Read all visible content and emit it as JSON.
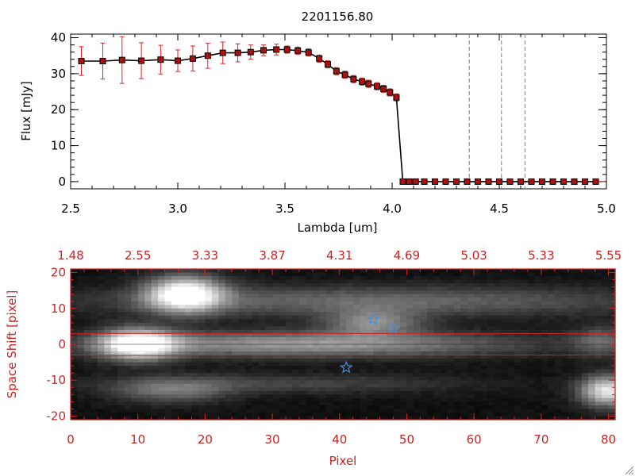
{
  "chart_data": [
    {
      "type": "line",
      "title": "2201156.80",
      "xlabel": "Lambda [um]",
      "ylabel": "Flux [mJy]",
      "xlim": [
        2.5,
        5.0
      ],
      "ylim": [
        -2,
        41
      ],
      "xticks": [
        "2.5",
        "3.0",
        "3.5",
        "4.0",
        "4.5",
        "5.0"
      ],
      "yticks": [
        "0",
        "10",
        "20",
        "30",
        "40"
      ],
      "xtick_values": [
        2.5,
        3.0,
        3.5,
        4.0,
        4.5,
        5.0
      ],
      "ytick_values": [
        0,
        10,
        20,
        30,
        40
      ],
      "colors": {
        "line": "#000000",
        "marker": "#aa1111",
        "errorbar": "#dd2222",
        "vline": "#4a90d9",
        "zero_line": "#dd2222"
      },
      "series": [
        {
          "name": "flux",
          "x": [
            2.55,
            2.65,
            2.74,
            2.83,
            2.92,
            3.0,
            3.07,
            3.14,
            3.21,
            3.28,
            3.34,
            3.4,
            3.46,
            3.51,
            3.56,
            3.61,
            3.66,
            3.7,
            3.74,
            3.78,
            3.82,
            3.86,
            3.89,
            3.93,
            3.96,
            3.99,
            4.02,
            4.05,
            4.08,
            4.11,
            4.15,
            4.2,
            4.25,
            4.3,
            4.35,
            4.4,
            4.45,
            4.5,
            4.55,
            4.6,
            4.65,
            4.7,
            4.75,
            4.8,
            4.85,
            4.9,
            4.95
          ],
          "y": [
            33.5,
            33.5,
            33.8,
            33.6,
            33.9,
            33.6,
            34.2,
            35.0,
            35.8,
            35.8,
            36.0,
            36.5,
            36.7,
            36.7,
            36.4,
            35.9,
            34.2,
            32.6,
            30.7,
            29.7,
            28.5,
            27.8,
            27.2,
            26.5,
            25.8,
            24.8,
            23.4,
            0,
            0,
            0,
            0,
            0,
            0,
            0,
            0,
            0,
            0,
            0,
            0,
            0,
            0,
            0,
            0,
            0,
            0,
            0,
            0
          ],
          "err": [
            4,
            5,
            6.5,
            5,
            4,
            3,
            3.5,
            3.5,
            3,
            2.5,
            2,
            1.5,
            1.5,
            1,
            1,
            1,
            1,
            1,
            1,
            1,
            1,
            1,
            1,
            1,
            1,
            1,
            1,
            0,
            0,
            0,
            0,
            0,
            0,
            0,
            0,
            0,
            0,
            0,
            0,
            0,
            0,
            0,
            0,
            0,
            0,
            0,
            0
          ]
        }
      ],
      "vlines": [
        4.36,
        4.51,
        4.62
      ]
    },
    {
      "type": "heatmap",
      "xlabel": "Pixel",
      "ylabel": "Space Shift [pixel]",
      "xlim": [
        0,
        81
      ],
      "ylim": [
        -21,
        21
      ],
      "xticks": [
        "0",
        "10",
        "20",
        "30",
        "40",
        "50",
        "60",
        "70",
        "80"
      ],
      "xtick_values": [
        0,
        10,
        20,
        30,
        40,
        50,
        60,
        70,
        80
      ],
      "yticks": [
        "20",
        "10",
        "0",
        "-10",
        "-20"
      ],
      "ytick_values": [
        20,
        10,
        0,
        -10,
        -20
      ],
      "top_ticks": [
        "1.48",
        "2.55",
        "3.33",
        "3.87",
        "4.31",
        "4.69",
        "5.03",
        "5.33",
        "5.55"
      ],
      "top_tick_positions": [
        0,
        10,
        20,
        30,
        40,
        50,
        60,
        70,
        80
      ],
      "hlines": [
        3,
        -3
      ],
      "stars": [
        [
          45,
          7
        ],
        [
          48,
          4.5
        ],
        [
          41,
          -6.5
        ]
      ],
      "colors": {
        "axis": "#cc2222",
        "hline": "#cc2222",
        "star": "#4a90d9"
      },
      "blobs": [
        {
          "cx": 17,
          "cy": 14,
          "sx": 4,
          "sy": 3.5,
          "amp": 1.0
        },
        {
          "cx": 45,
          "cy": 12,
          "sx": 30,
          "sy": 3,
          "amp": 0.35
        },
        {
          "cx": 10,
          "cy": 0,
          "sx": 4,
          "sy": 3,
          "amp": 1.0
        },
        {
          "cx": 35,
          "cy": 0,
          "sx": 22,
          "sy": 2.5,
          "amp": 0.55
        },
        {
          "cx": 45,
          "cy": 6,
          "sx": 5,
          "sy": 2.5,
          "amp": 0.45
        },
        {
          "cx": 15,
          "cy": -13,
          "sx": 6,
          "sy": 2.5,
          "amp": 0.35
        },
        {
          "cx": 32,
          "cy": -11,
          "sx": 20,
          "sy": 2,
          "amp": 0.2
        },
        {
          "cx": 80,
          "cy": -13,
          "sx": 3,
          "sy": 3,
          "amp": 0.85
        },
        {
          "cx": 79,
          "cy": 1,
          "sx": 3,
          "sy": 3,
          "amp": 0.3
        }
      ]
    }
  ]
}
